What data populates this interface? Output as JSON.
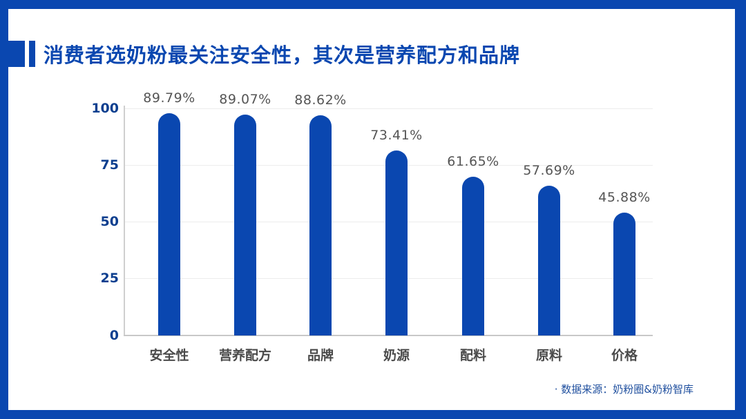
{
  "title": "消费者选奶粉最关注安全性，其次是营养配方和品牌",
  "source": "· 数据来源：奶粉圈&奶粉智库",
  "colors": {
    "frame": "#0a47b0",
    "bar": "#0a47b0",
    "title": "#0a47b0",
    "axis_tick": "#0d3f8f",
    "value_label": "#555555",
    "category_label": "#4a4a4a"
  },
  "y_ticks": [
    "100",
    "75",
    "50",
    "25",
    "0"
  ],
  "chart_data": {
    "type": "bar",
    "title": "消费者选奶粉最关注安全性，其次是营养配方和品牌",
    "categories": [
      "安全性",
      "营养配方",
      "品牌",
      "奶源",
      "配料",
      "原料",
      "价格"
    ],
    "values": [
      89.79,
      89.07,
      88.62,
      73.41,
      61.65,
      57.69,
      45.88
    ],
    "value_labels": [
      "89.79%",
      "89.07%",
      "88.62%",
      "73.41%",
      "61.65%",
      "57.69%",
      "45.88%"
    ],
    "unit": "%",
    "xlabel": "",
    "ylabel": "",
    "ylim": [
      0,
      100
    ],
    "yticks": [
      0,
      25,
      50,
      75,
      100
    ],
    "grid": true,
    "legend": "none",
    "annotation": "· 数据来源：奶粉圈&奶粉智库"
  }
}
